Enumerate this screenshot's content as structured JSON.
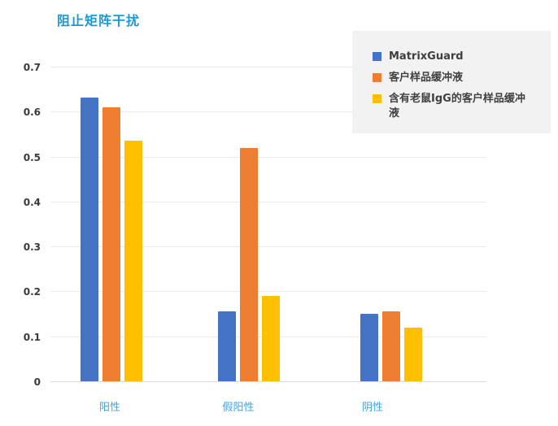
{
  "chart_data": {
    "type": "bar",
    "title": "阻止矩阵干扰",
    "categories": [
      "阳性",
      "假阳性",
      "阴性"
    ],
    "series": [
      {
        "name": "MatrixGuard",
        "color": "#4472C4",
        "values": [
          0.632,
          0.155,
          0.15
        ]
      },
      {
        "name": "客户样品缓冲液",
        "color": "#ED7D31",
        "values": [
          0.61,
          0.52,
          0.155
        ]
      },
      {
        "name": "含有老鼠IgG的客户样品缓冲液",
        "color": "#FFC000",
        "values": [
          0.535,
          0.19,
          0.12
        ]
      }
    ],
    "xlabel": "",
    "ylabel": "",
    "ylim": [
      0,
      0.7
    ],
    "yticks": [
      "0",
      "0.1",
      "0.2",
      "0.3",
      "0.4",
      "0.5",
      "0.6",
      "0.7"
    ],
    "grid": true,
    "legend_position": "top-right",
    "colors": {
      "title_text": "#1899d6",
      "x_label_text": "#41a2dc",
      "y_label_text": "#3a3a3a",
      "legend_background": "#f2f2f2",
      "gridline": "#eaeaea"
    }
  }
}
